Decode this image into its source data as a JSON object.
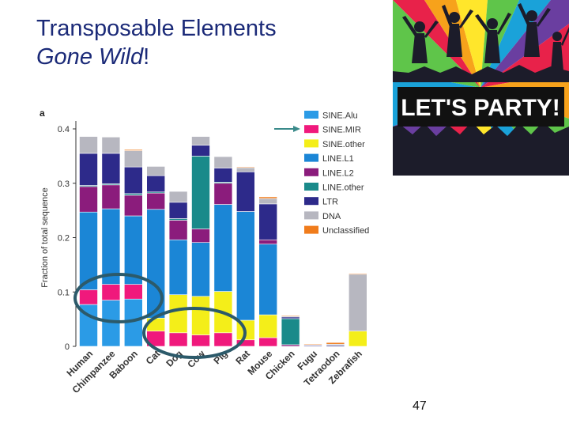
{
  "slide": {
    "title_line1": "Transposable Elements",
    "title_line2_italic": "Gone Wild",
    "title_line2_suffix": "!",
    "page_number": "47"
  },
  "party_image": {
    "banner_text": "LET'S PARTY!"
  },
  "colors": {
    "SINE.Alu": "#2b9be6",
    "SINE.MIR": "#f0197c",
    "SINE.other": "#f4ee19",
    "LINE.L1": "#1b86d6",
    "LINE.L2": "#8b1c7c",
    "LINE.other": "#1a8a8a",
    "LTR": "#2d2a8a",
    "DNA": "#b7b7c0",
    "Unclassified": "#f07c1c",
    "circle": "#2c5a6a",
    "arrow": "#3a8a8a"
  },
  "chart_data": {
    "type": "bar",
    "stacked": true,
    "panel_label": "a",
    "ylabel": "Fraction of total sequence",
    "xlabel": "",
    "ylim": [
      0,
      0.4
    ],
    "yticks": [
      "0",
      "0.1",
      "0.2",
      "0.3",
      "0.4"
    ],
    "categories": [
      "Human",
      "Chimpanzee",
      "Baboon",
      "Cat",
      "Dog",
      "Cow",
      "Pig",
      "Rat",
      "Mouse",
      "Chicken",
      "Fugu",
      "Tetraodon",
      "Zebrafish"
    ],
    "series": [
      {
        "name": "SINE.Alu",
        "values": [
          0.077,
          0.085,
          0.087,
          0,
          0,
          0,
          0,
          0,
          0,
          0,
          0,
          0,
          0
        ]
      },
      {
        "name": "SINE.MIR",
        "values": [
          0.027,
          0.029,
          0.027,
          0.028,
          0.025,
          0.021,
          0.025,
          0.012,
          0.016,
          0,
          0,
          0,
          0
        ]
      },
      {
        "name": "SINE.other",
        "values": [
          0,
          0,
          0,
          0.024,
          0.07,
          0.071,
          0.076,
          0.036,
          0.042,
          0,
          0,
          0,
          0.028
        ]
      },
      {
        "name": "LINE.L1",
        "values": [
          0.143,
          0.139,
          0.126,
          0.2,
          0.101,
          0.099,
          0.16,
          0.2,
          0.13,
          0,
          0,
          0,
          0
        ]
      },
      {
        "name": "LINE.L2",
        "values": [
          0.047,
          0.044,
          0.038,
          0.03,
          0.036,
          0.025,
          0.039,
          0,
          0.008,
          0.003,
          0,
          0,
          0
        ]
      },
      {
        "name": "LINE.other",
        "values": [
          0.002,
          0.002,
          0.003,
          0.002,
          0.003,
          0.134,
          0.002,
          0,
          0,
          0.048,
          0,
          0,
          0
        ]
      },
      {
        "name": "LTR",
        "values": [
          0.059,
          0.056,
          0.049,
          0.03,
          0.03,
          0.02,
          0.026,
          0.073,
          0.066,
          0.003,
          0.002,
          0.002,
          0
        ]
      },
      {
        "name": "DNA",
        "values": [
          0.031,
          0.03,
          0.03,
          0.017,
          0.02,
          0.016,
          0.021,
          0.008,
          0.01,
          0.002,
          0.001,
          0.002,
          0.105
        ]
      },
      {
        "name": "Unclassified",
        "values": [
          0,
          0,
          0.002,
          0,
          0,
          0,
          0,
          0.001,
          0.003,
          0.001,
          0.001,
          0.003,
          0.001
        ]
      }
    ],
    "legend_position": "right",
    "grid": false,
    "annotations": [
      "arrow pointing to SINE.MIR legend entry",
      "circle around SINE.MIR segments of Human, Chimpanzee, Baboon",
      "circle around SINE.MIR and SINE.other segments of Cat, Dog, Cow, Pig"
    ]
  }
}
